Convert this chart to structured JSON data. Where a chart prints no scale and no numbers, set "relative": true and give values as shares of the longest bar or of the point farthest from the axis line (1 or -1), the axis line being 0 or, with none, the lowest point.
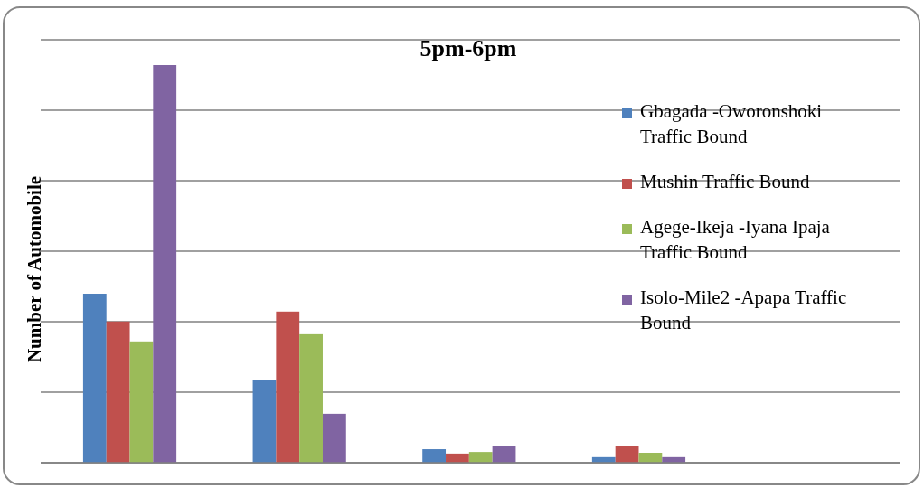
{
  "chart_data": {
    "type": "bar",
    "title": "5pm-6pm",
    "ylabel": "Number of Automobile",
    "relative": true,
    "categories": [
      null,
      null,
      null,
      null
    ],
    "series": [
      {
        "name": "Gbagada -Oworonshoki Traffic Bound",
        "color": "#4f81bd",
        "values": [
          0.425,
          0.207,
          0.034,
          0.014
        ]
      },
      {
        "name": "Mushin Traffic Bound",
        "color": "#c0504d",
        "values": [
          0.355,
          0.38,
          0.023,
          0.041
        ]
      },
      {
        "name": "Agege-Ikeja -Iyana Ipaja Traffic Bound",
        "color": "#9bbb59",
        "values": [
          0.305,
          0.323,
          0.027,
          0.025
        ]
      },
      {
        "name": "Isolo-Mile2 -Apapa Traffic Bound",
        "color": "#8064a2",
        "values": [
          1,
          0.123,
          0.043,
          0.014
        ]
      }
    ],
    "grid": "y",
    "legend": "right"
  }
}
